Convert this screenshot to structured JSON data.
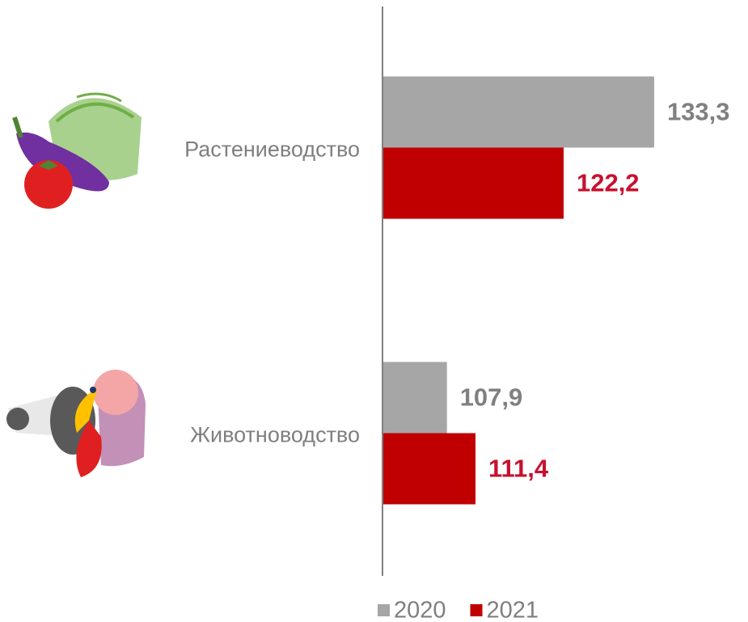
{
  "chart_data": {
    "type": "barh",
    "categories": [
      "Растениеводство",
      "Животноводство"
    ],
    "series": [
      {
        "name": "2020",
        "color": "#a6a6a6",
        "label_color": "#808080",
        "values": [
          133.3,
          107.9
        ],
        "value_labels": [
          "133,3",
          "107,9"
        ]
      },
      {
        "name": "2021",
        "color": "#c00000",
        "label_color": "#c8102e",
        "values": [
          122.2,
          111.4
        ],
        "value_labels": [
          "122,2",
          "111,4"
        ]
      }
    ],
    "xlim": [
      100,
      145
    ],
    "legend": "bottom"
  }
}
